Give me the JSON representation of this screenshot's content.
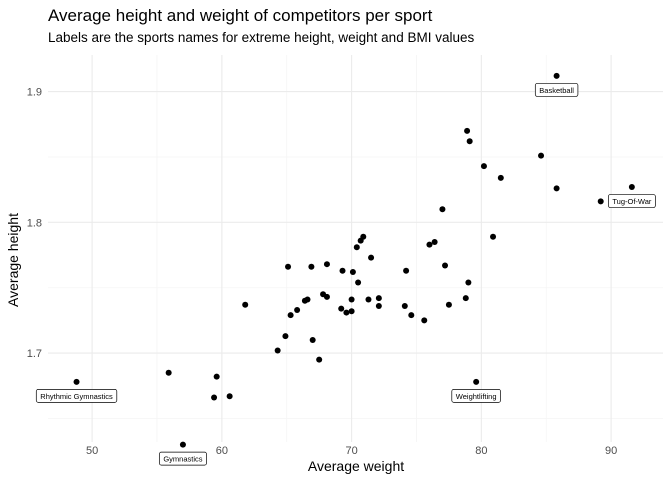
{
  "chart_data": {
    "type": "scatter",
    "title": "Average height and weight of competitors per sport",
    "subtitle": "Labels are the sports names for extreme height, weight and BMI values",
    "xlabel": "Average weight",
    "ylabel": "Average height",
    "xlim": [
      46.6,
      94.0
    ],
    "ylim": [
      1.632,
      1.928
    ],
    "xticks": [
      50,
      60,
      70,
      80,
      90
    ],
    "yticks": [
      1.7,
      1.8,
      1.9
    ],
    "grid": true,
    "points": [
      {
        "x": 48.8,
        "y": 1.678
      },
      {
        "x": 55.9,
        "y": 1.685
      },
      {
        "x": 57.0,
        "y": 1.63
      },
      {
        "x": 59.4,
        "y": 1.666
      },
      {
        "x": 59.6,
        "y": 1.682
      },
      {
        "x": 60.6,
        "y": 1.667
      },
      {
        "x": 61.8,
        "y": 1.737
      },
      {
        "x": 64.3,
        "y": 1.702
      },
      {
        "x": 64.9,
        "y": 1.713
      },
      {
        "x": 65.1,
        "y": 1.766
      },
      {
        "x": 65.3,
        "y": 1.729
      },
      {
        "x": 65.8,
        "y": 1.733
      },
      {
        "x": 66.4,
        "y": 1.74
      },
      {
        "x": 66.6,
        "y": 1.741
      },
      {
        "x": 66.9,
        "y": 1.766
      },
      {
        "x": 67.0,
        "y": 1.71
      },
      {
        "x": 67.5,
        "y": 1.695
      },
      {
        "x": 67.8,
        "y": 1.745
      },
      {
        "x": 68.1,
        "y": 1.768
      },
      {
        "x": 68.1,
        "y": 1.743
      },
      {
        "x": 69.2,
        "y": 1.734
      },
      {
        "x": 69.3,
        "y": 1.763
      },
      {
        "x": 69.6,
        "y": 1.731
      },
      {
        "x": 70.0,
        "y": 1.732
      },
      {
        "x": 70.0,
        "y": 1.741
      },
      {
        "x": 70.1,
        "y": 1.762
      },
      {
        "x": 70.4,
        "y": 1.781
      },
      {
        "x": 70.5,
        "y": 1.754
      },
      {
        "x": 70.7,
        "y": 1.786
      },
      {
        "x": 70.9,
        "y": 1.789
      },
      {
        "x": 71.3,
        "y": 1.741
      },
      {
        "x": 71.5,
        "y": 1.773
      },
      {
        "x": 72.1,
        "y": 1.742
      },
      {
        "x": 72.1,
        "y": 1.736
      },
      {
        "x": 74.1,
        "y": 1.736
      },
      {
        "x": 74.2,
        "y": 1.763
      },
      {
        "x": 74.6,
        "y": 1.729
      },
      {
        "x": 75.6,
        "y": 1.725
      },
      {
        "x": 76.0,
        "y": 1.783
      },
      {
        "x": 76.4,
        "y": 1.785
      },
      {
        "x": 77.0,
        "y": 1.81
      },
      {
        "x": 77.2,
        "y": 1.767
      },
      {
        "x": 77.5,
        "y": 1.737
      },
      {
        "x": 78.8,
        "y": 1.742
      },
      {
        "x": 78.9,
        "y": 1.87
      },
      {
        "x": 79.0,
        "y": 1.754
      },
      {
        "x": 79.1,
        "y": 1.862
      },
      {
        "x": 79.6,
        "y": 1.678
      },
      {
        "x": 80.2,
        "y": 1.843
      },
      {
        "x": 80.9,
        "y": 1.789
      },
      {
        "x": 81.5,
        "y": 1.834
      },
      {
        "x": 84.6,
        "y": 1.851
      },
      {
        "x": 85.8,
        "y": 1.826
      },
      {
        "x": 85.8,
        "y": 1.912
      },
      {
        "x": 89.2,
        "y": 1.816
      },
      {
        "x": 91.6,
        "y": 1.827
      }
    ],
    "labels": [
      {
        "text": "Basketball",
        "x": 85.8,
        "y": 1.912
      },
      {
        "text": "Tug-Of-War",
        "x": 91.6,
        "y": 1.827
      },
      {
        "text": "Rhythmic Gymnastics",
        "x": 48.8,
        "y": 1.678
      },
      {
        "text": "Weightlifting",
        "x": 79.6,
        "y": 1.678
      },
      {
        "text": "Gymnastics",
        "x": 57.0,
        "y": 1.63
      }
    ]
  }
}
